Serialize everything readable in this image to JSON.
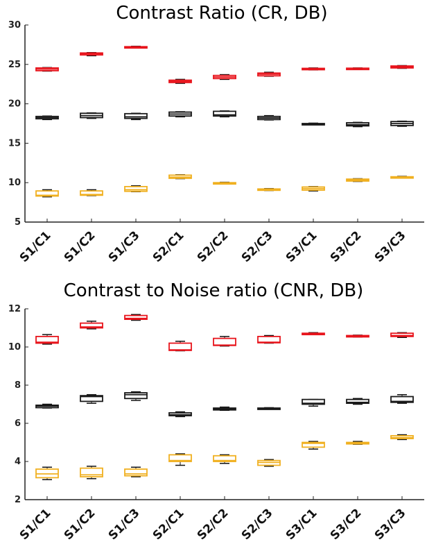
{
  "charts": {
    "top_title": "Contrast Ratio (CR, DB)",
    "bottom_title": "Contrast to Noise ratio (CNR, DB)"
  },
  "chart_data": [
    {
      "type": "box",
      "title": "Contrast Ratio (CR, DB)",
      "categories": [
        "S1/C1",
        "S1/C2",
        "S1/C3",
        "S2/C1",
        "S2/C2",
        "S2/C3",
        "S3/C1",
        "S3/C2",
        "S3/C3"
      ],
      "ylim": [
        5,
        30
      ],
      "yticks": [
        5,
        10,
        15,
        20,
        25,
        30
      ],
      "series": [
        {
          "color": "#e8141c",
          "boxes": [
            {
              "min": 24.15,
              "q1": 24.2,
              "median": 24.4,
              "q3": 24.55,
              "max": 24.6
            },
            {
              "min": 26.1,
              "q1": 26.2,
              "median": 26.35,
              "q3": 26.45,
              "max": 26.5
            },
            {
              "min": 27.1,
              "q1": 27.15,
              "median": 27.2,
              "q3": 27.25,
              "max": 27.3
            },
            {
              "min": 22.6,
              "q1": 22.7,
              "median": 22.85,
              "q3": 23.0,
              "max": 23.1
            },
            {
              "min": 23.1,
              "q1": 23.2,
              "median": 23.4,
              "q3": 23.6,
              "max": 23.7
            },
            {
              "min": 23.5,
              "q1": 23.55,
              "median": 23.75,
              "q3": 23.9,
              "max": 24.0
            },
            {
              "min": 24.3,
              "q1": 24.35,
              "median": 24.45,
              "q3": 24.5,
              "max": 24.55
            },
            {
              "min": 24.45,
              "q1": 24.48,
              "median": 24.5,
              "q3": 24.52,
              "max": 24.55
            },
            {
              "min": 24.5,
              "q1": 24.55,
              "median": 24.7,
              "q3": 24.8,
              "max": 24.85
            }
          ]
        },
        {
          "color": "#1a1a1a",
          "boxes": [
            {
              "min": 18.0,
              "q1": 18.1,
              "median": 18.25,
              "q3": 18.4,
              "max": 18.45
            },
            {
              "min": 18.15,
              "q1": 18.25,
              "median": 18.5,
              "q3": 18.8,
              "max": 18.85
            },
            {
              "min": 18.0,
              "q1": 18.15,
              "median": 18.35,
              "q3": 18.75,
              "max": 18.8
            },
            {
              "min": 18.35,
              "q1": 18.45,
              "median": 18.7,
              "q3": 18.95,
              "max": 19.0
            },
            {
              "min": 18.35,
              "q1": 18.45,
              "median": 18.6,
              "q3": 19.05,
              "max": 19.1
            },
            {
              "min": 17.95,
              "q1": 18.0,
              "median": 18.2,
              "q3": 18.4,
              "max": 18.5
            },
            {
              "min": 17.35,
              "q1": 17.4,
              "median": 17.45,
              "q3": 17.5,
              "max": 17.55
            },
            {
              "min": 17.1,
              "q1": 17.2,
              "median": 17.35,
              "q3": 17.6,
              "max": 17.65
            },
            {
              "min": 17.15,
              "q1": 17.25,
              "median": 17.5,
              "q3": 17.75,
              "max": 17.8
            }
          ]
        },
        {
          "color": "#f0b020",
          "boxes": [
            {
              "min": 8.2,
              "q1": 8.3,
              "median": 8.4,
              "q3": 8.95,
              "max": 9.1
            },
            {
              "min": 8.35,
              "q1": 8.4,
              "median": 8.5,
              "q3": 8.95,
              "max": 9.1
            },
            {
              "min": 8.85,
              "q1": 8.9,
              "median": 9.1,
              "q3": 9.5,
              "max": 9.6
            },
            {
              "min": 10.5,
              "q1": 10.55,
              "median": 10.7,
              "q3": 10.95,
              "max": 11.0
            },
            {
              "min": 9.85,
              "q1": 9.9,
              "median": 9.95,
              "q3": 10.0,
              "max": 10.05
            },
            {
              "min": 9.0,
              "q1": 9.05,
              "median": 9.15,
              "q3": 9.2,
              "max": 9.25
            },
            {
              "min": 8.95,
              "q1": 9.05,
              "median": 9.25,
              "q3": 9.45,
              "max": 9.5
            },
            {
              "min": 10.15,
              "q1": 10.2,
              "median": 10.3,
              "q3": 10.45,
              "max": 10.5
            },
            {
              "min": 10.6,
              "q1": 10.65,
              "median": 10.7,
              "q3": 10.75,
              "max": 10.8
            }
          ]
        }
      ]
    },
    {
      "type": "box",
      "title": "Contrast to Noise ratio (CNR, DB)",
      "categories": [
        "S1/C1",
        "S1/C2",
        "S1/C3",
        "S2/C1",
        "S2/C2",
        "S2/C3",
        "S3/C1",
        "S3/C2",
        "S3/C3"
      ],
      "ylim": [
        2,
        12
      ],
      "yticks": [
        2,
        4,
        6,
        8,
        10,
        12
      ],
      "series": [
        {
          "color": "#e8141c",
          "boxes": [
            {
              "min": 10.15,
              "q1": 10.2,
              "median": 10.25,
              "q3": 10.55,
              "max": 10.65
            },
            {
              "min": 10.95,
              "q1": 11.0,
              "median": 11.05,
              "q3": 11.25,
              "max": 11.35
            },
            {
              "min": 11.4,
              "q1": 11.45,
              "median": 11.5,
              "q3": 11.65,
              "max": 11.7
            },
            {
              "min": 9.8,
              "q1": 9.82,
              "median": 9.85,
              "q3": 10.2,
              "max": 10.3
            },
            {
              "min": 10.05,
              "q1": 10.08,
              "median": 10.1,
              "q3": 10.45,
              "max": 10.55
            },
            {
              "min": 10.2,
              "q1": 10.22,
              "median": 10.25,
              "q3": 10.55,
              "max": 10.6
            },
            {
              "min": 10.65,
              "q1": 10.67,
              "median": 10.7,
              "q3": 10.72,
              "max": 10.75
            },
            {
              "min": 10.52,
              "q1": 10.55,
              "median": 10.57,
              "q3": 10.6,
              "max": 10.62
            },
            {
              "min": 10.5,
              "q1": 10.55,
              "median": 10.6,
              "q3": 10.72,
              "max": 10.75
            }
          ]
        },
        {
          "color": "#1a1a1a",
          "boxes": [
            {
              "min": 6.8,
              "q1": 6.82,
              "median": 6.9,
              "q3": 6.95,
              "max": 7.0
            },
            {
              "min": 7.05,
              "q1": 7.15,
              "median": 7.4,
              "q3": 7.45,
              "max": 7.5
            },
            {
              "min": 7.2,
              "q1": 7.3,
              "median": 7.5,
              "q3": 7.6,
              "max": 7.65
            },
            {
              "min": 6.35,
              "q1": 6.4,
              "median": 6.45,
              "q3": 6.55,
              "max": 6.6
            },
            {
              "min": 6.68,
              "q1": 6.7,
              "median": 6.75,
              "q3": 6.8,
              "max": 6.85
            },
            {
              "min": 6.75,
              "q1": 6.76,
              "median": 6.78,
              "q3": 6.8,
              "max": 6.82
            },
            {
              "min": 6.9,
              "q1": 7.0,
              "median": 7.05,
              "q3": 7.25,
              "max": 7.25
            },
            {
              "min": 7.0,
              "q1": 7.05,
              "median": 7.1,
              "q3": 7.25,
              "max": 7.3
            },
            {
              "min": 7.05,
              "q1": 7.1,
              "median": 7.15,
              "q3": 7.4,
              "max": 7.5
            }
          ]
        },
        {
          "color": "#f0b020",
          "boxes": [
            {
              "min": 3.05,
              "q1": 3.15,
              "median": 3.35,
              "q3": 3.6,
              "max": 3.7
            },
            {
              "min": 3.1,
              "q1": 3.2,
              "median": 3.3,
              "q3": 3.65,
              "max": 3.75
            },
            {
              "min": 3.2,
              "q1": 3.25,
              "median": 3.35,
              "q3": 3.6,
              "max": 3.7
            },
            {
              "min": 3.8,
              "q1": 4.0,
              "median": 4.05,
              "q3": 4.35,
              "max": 4.4
            },
            {
              "min": 3.9,
              "q1": 4.0,
              "median": 4.05,
              "q3": 4.3,
              "max": 4.35
            },
            {
              "min": 3.75,
              "q1": 3.8,
              "median": 3.95,
              "q3": 4.05,
              "max": 4.1
            },
            {
              "min": 4.65,
              "q1": 4.75,
              "median": 4.95,
              "q3": 5.0,
              "max": 5.05
            },
            {
              "min": 4.9,
              "q1": 4.92,
              "median": 4.95,
              "q3": 5.0,
              "max": 5.05
            },
            {
              "min": 5.15,
              "q1": 5.2,
              "median": 5.25,
              "q3": 5.35,
              "max": 5.4
            }
          ]
        }
      ]
    }
  ]
}
